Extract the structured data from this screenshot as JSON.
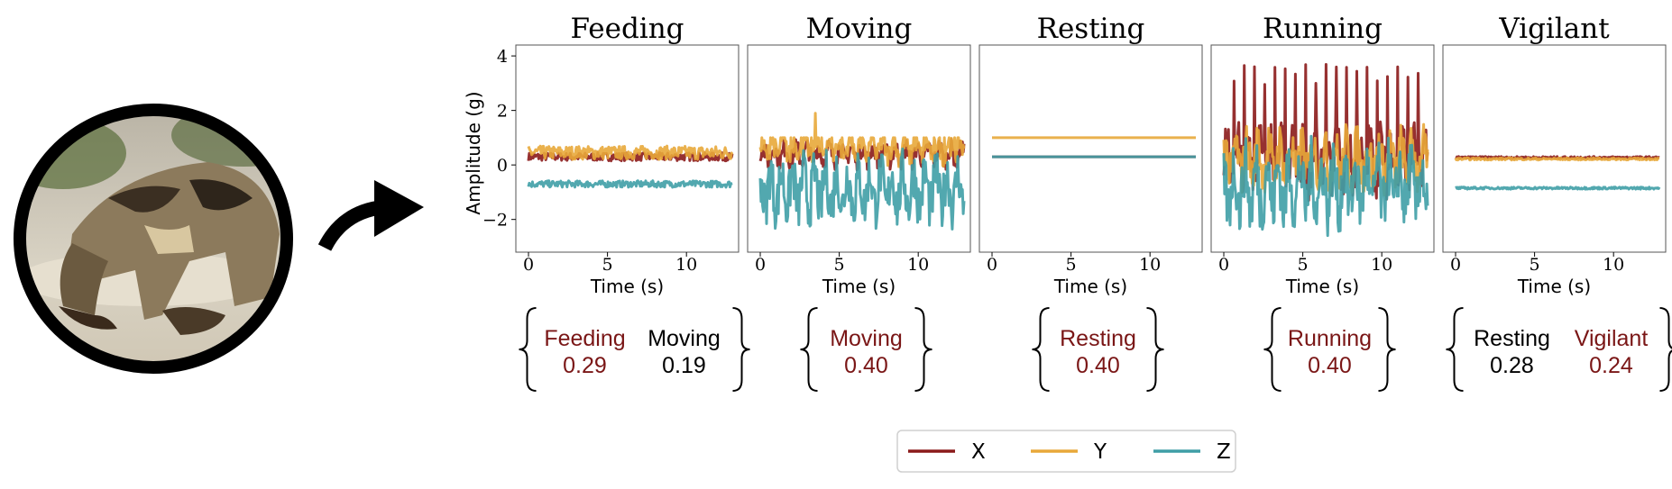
{
  "photo": {
    "subject": "African wild dog"
  },
  "chart_data": {
    "type": "line",
    "ylabel": "Amplitude (g)",
    "xlabel": "Time (s)",
    "xlim": [
      -0.8,
      13.3
    ],
    "ylim": [
      -3.2,
      4.4
    ],
    "xticks": [
      0,
      5,
      10
    ],
    "yticks": [
      -2,
      0,
      2,
      4
    ],
    "duration": 12.9,
    "legend": [
      {
        "name": "X",
        "color": "#8b1a1a"
      },
      {
        "name": "Y",
        "color": "#e8a83a"
      },
      {
        "name": "Z",
        "color": "#3f9ea6"
      }
    ],
    "panels": [
      {
        "title": "Feeding",
        "series": {
          "X": {
            "mean": 0.3,
            "noise": 0.15,
            "spikes": 0
          },
          "Y": {
            "mean": 0.45,
            "noise": 0.25,
            "spikes": 0
          },
          "Z": {
            "mean": -0.7,
            "noise": 0.12,
            "spikes": 0
          }
        },
        "predictions": [
          {
            "label": "Feeding",
            "score": "0.29",
            "color": "#7a1616"
          },
          {
            "label": "Moving",
            "score": "0.19",
            "color": "#000000"
          }
        ]
      },
      {
        "title": "Moving",
        "series": {
          "X": {
            "mean": 0.4,
            "noise": 0.35,
            "spikes": 0
          },
          "Y": {
            "mean": 0.6,
            "noise": 0.4,
            "spikes": 1.9
          },
          "Z": {
            "mean": -0.9,
            "noise": 0.9,
            "spikes": 0
          }
        },
        "predictions": [
          {
            "label": "Moving",
            "score": "0.40",
            "color": "#7a1616"
          }
        ]
      },
      {
        "title": "Resting",
        "series": {
          "X": {
            "mean": 0.3,
            "noise": 0,
            "spikes": 0
          },
          "Y": {
            "mean": 1.0,
            "noise": 0,
            "spikes": 0
          },
          "Z": {
            "mean": 0.3,
            "noise": 0,
            "spikes": 0
          }
        },
        "predictions": [
          {
            "label": "Resting",
            "score": "0.40",
            "color": "#7a1616"
          }
        ]
      },
      {
        "title": "Running",
        "series": {
          "X": {
            "mean": 0.2,
            "noise": 0.9,
            "spikes": 3.8
          },
          "Y": {
            "mean": 0.2,
            "noise": 0.8,
            "spikes": 0
          },
          "Z": {
            "mean": -0.8,
            "noise": 1.1,
            "spikes": 0
          }
        },
        "predictions": [
          {
            "label": "Running",
            "score": "0.40",
            "color": "#7a1616"
          }
        ]
      },
      {
        "title": "Vigilant",
        "series": {
          "X": {
            "mean": 0.27,
            "noise": 0.04,
            "spikes": 0
          },
          "Y": {
            "mean": 0.22,
            "noise": 0.04,
            "spikes": 0
          },
          "Z": {
            "mean": -0.85,
            "noise": 0.04,
            "spikes": 0
          }
        },
        "predictions": [
          {
            "label": "Resting",
            "score": "0.28",
            "color": "#000000"
          },
          {
            "label": "Vigilant",
            "score": "0.24",
            "color": "#7a1616"
          }
        ]
      }
    ]
  }
}
